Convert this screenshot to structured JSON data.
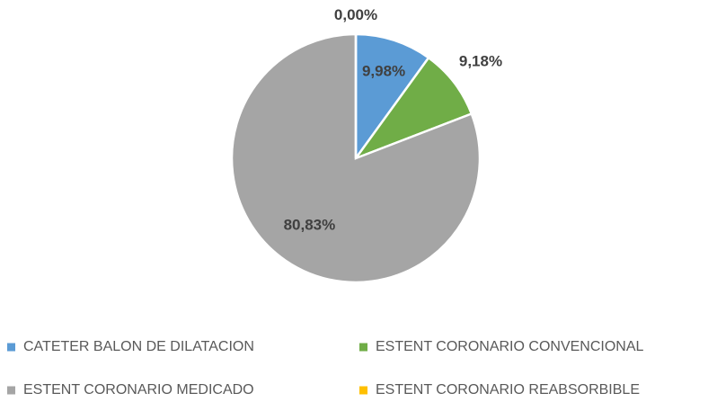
{
  "chart_data": {
    "type": "pie",
    "categories": [
      "CATETER BALON DE DILATACION",
      "ESTENT CORONARIO CONVENCIONAL",
      "ESTENT CORONARIO MEDICADO",
      "ESTENT CORONARIO REABSORBIBLE"
    ],
    "values": [
      9.98,
      9.18,
      80.83,
      0.0
    ],
    "value_labels": [
      "9,98%",
      "9,18%",
      "80,83%",
      "0,00%"
    ],
    "colors": [
      "#5b9bd5",
      "#70ad47",
      "#a5a5a5",
      "#ffc000"
    ],
    "legend": "bottom"
  }
}
